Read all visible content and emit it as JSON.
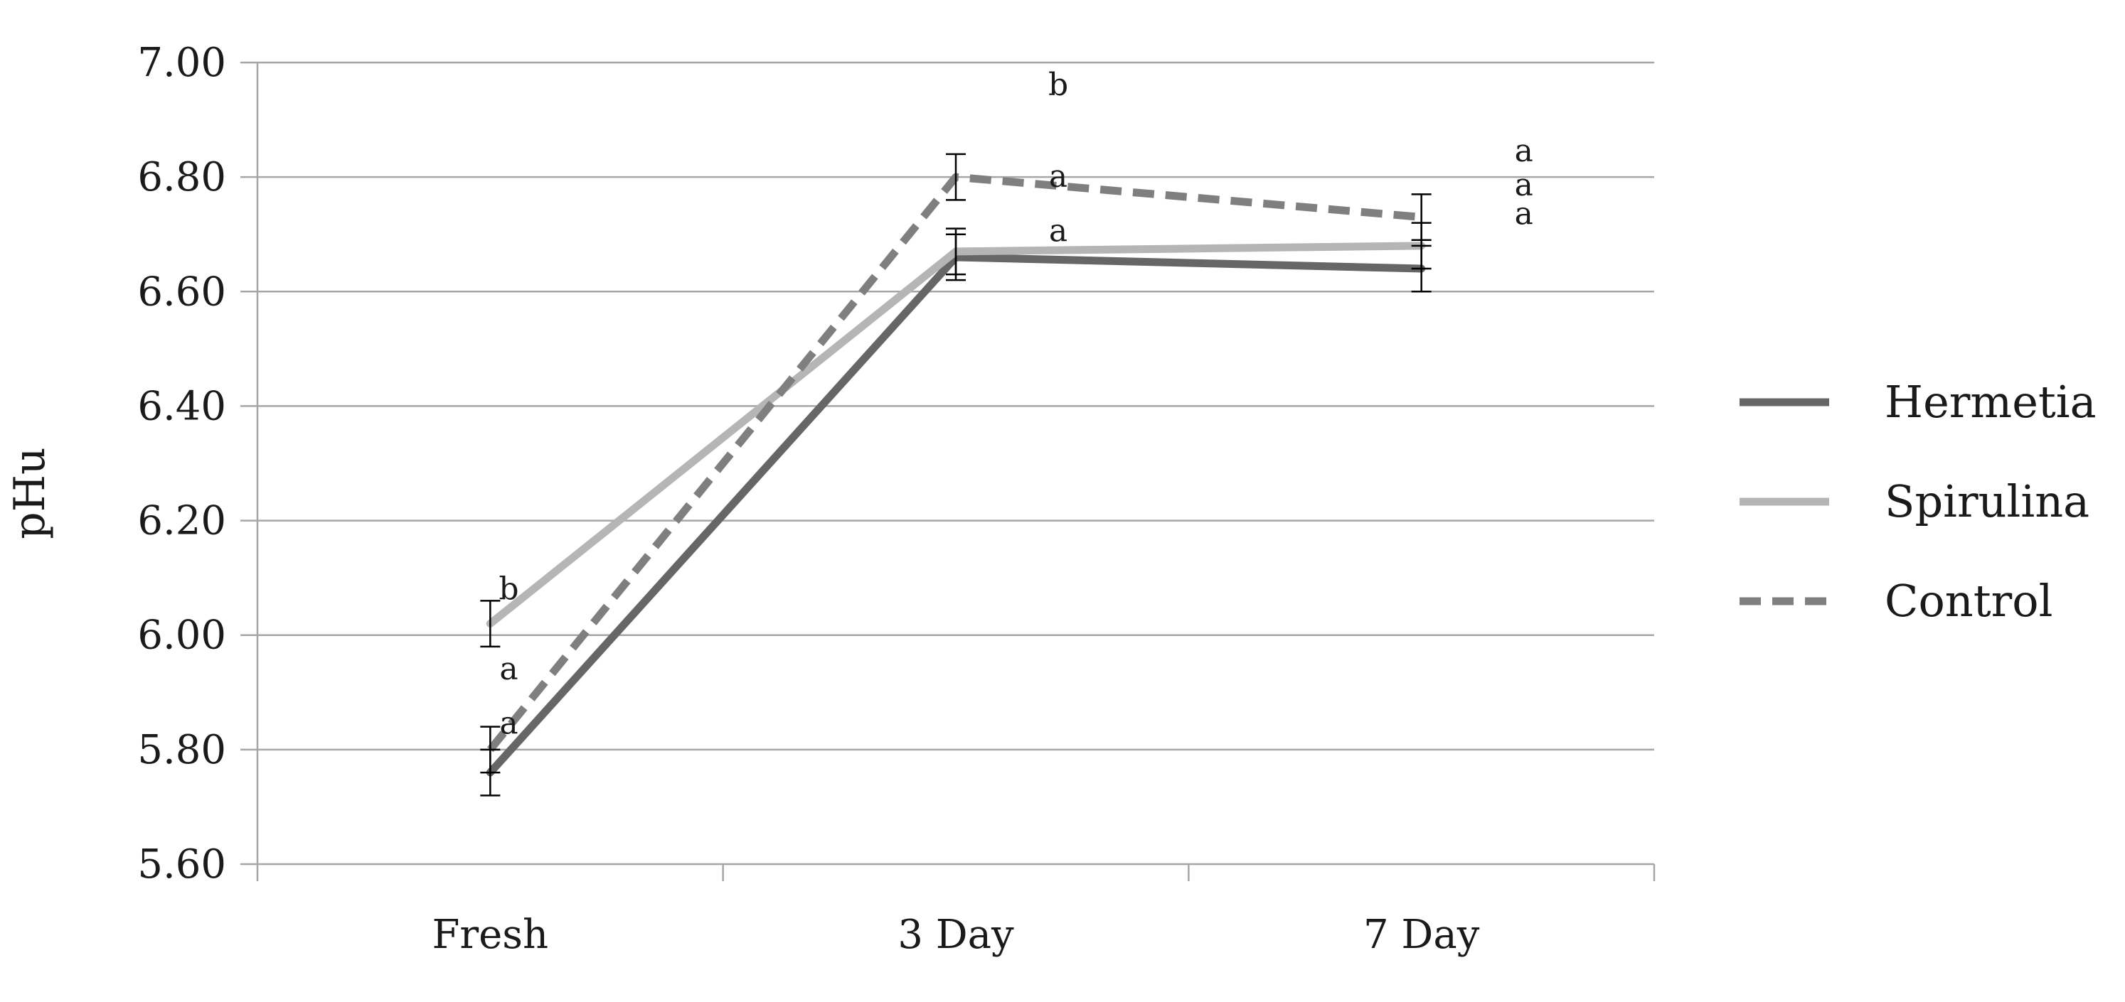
{
  "chart_data": {
    "type": "line",
    "title": "",
    "xlabel": "",
    "ylabel": "pHu",
    "categories": [
      "Fresh",
      "3 Day",
      "7 Day"
    ],
    "ylim": [
      5.6,
      7.0
    ],
    "yticks": [
      "5.60",
      "5.80",
      "6.00",
      "6.20",
      "6.40",
      "6.60",
      "6.80",
      "7.00"
    ],
    "grid": "horizontal",
    "legend_position": "right",
    "series": [
      {
        "name": "Hermetia",
        "values": [
          5.76,
          6.66,
          6.64
        ],
        "errors": [
          0.04,
          0.04,
          0.04
        ],
        "color": "#666666",
        "dash": "solid"
      },
      {
        "name": "Spirulina",
        "values": [
          6.02,
          6.67,
          6.68
        ],
        "errors": [
          0.04,
          0.04,
          0.04
        ],
        "color": "#b5b5b5",
        "dash": "solid"
      },
      {
        "name": "Control",
        "values": [
          5.8,
          6.8,
          6.73
        ],
        "errors": [
          0.04,
          0.04,
          0.04
        ],
        "color": "#7f7f7f",
        "dash": "dashed"
      }
    ],
    "annotations": [
      {
        "text": "b",
        "x": 0.04,
        "y": 6.08
      },
      {
        "text": "a",
        "x": 0.04,
        "y": 5.94
      },
      {
        "text": "a",
        "x": 0.04,
        "y": 5.845
      },
      {
        "text": "b",
        "x": 1.22,
        "y": 6.96
      },
      {
        "text": "a",
        "x": 1.22,
        "y": 6.8
      },
      {
        "text": "a",
        "x": 1.22,
        "y": 6.705
      },
      {
        "text": "a",
        "x": 2.22,
        "y": 6.845
      },
      {
        "text": "a",
        "x": 2.22,
        "y": 6.785
      },
      {
        "text": "a",
        "x": 2.22,
        "y": 6.735
      }
    ]
  }
}
